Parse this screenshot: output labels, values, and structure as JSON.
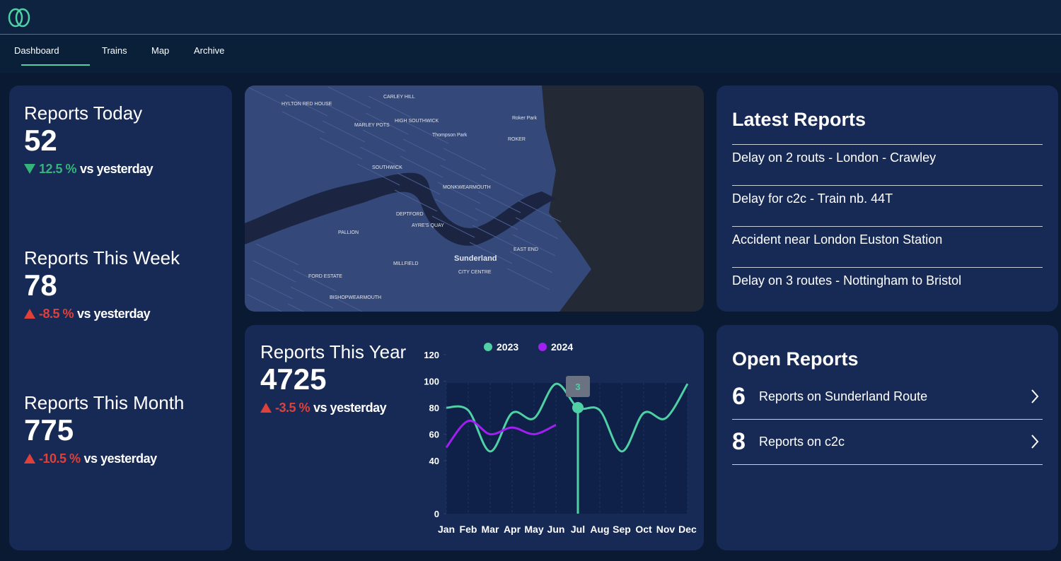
{
  "nav": [
    "Dashboard",
    "Trains",
    "Map",
    "Archive"
  ],
  "stats": [
    {
      "title": "Reports Today",
      "value": 52,
      "change": "12.5 %",
      "direction": "down",
      "comparison": "vs yesterday"
    },
    {
      "title": "Reports This Week",
      "value": 78,
      "change": "-8.5 %",
      "direction": "up",
      "comparison": "vs yesterday"
    },
    {
      "title": "Reports This Month",
      "value": 775,
      "change": "-10.5 %",
      "direction": "up",
      "comparison": "vs yesterday"
    }
  ],
  "year": {
    "title": "Reports This Year",
    "value": 4725,
    "change": "-3.5 %",
    "direction": "up",
    "comparison": "vs yesterday"
  },
  "chart_data": {
    "type": "line",
    "categories": [
      "Jan",
      "Feb",
      "Mar",
      "Apr",
      "May",
      "Jun",
      "Jul",
      "Aug",
      "Sep",
      "Oct",
      "Nov",
      "Dec"
    ],
    "series": [
      {
        "name": "2023",
        "color": "#4fd1a5",
        "values": [
          80,
          78,
          47,
          76,
          72,
          98,
          80,
          78,
          47,
          76,
          72,
          98
        ]
      },
      {
        "name": "2024",
        "color": "#a020f0",
        "values": [
          50,
          70,
          60,
          65,
          60,
          67,
          null,
          null,
          null,
          null,
          null,
          null
        ]
      }
    ],
    "ylim": [
      0,
      120
    ],
    "yticks": [
      0,
      40,
      60,
      80,
      100,
      120
    ],
    "tooltip": {
      "category": "Jul",
      "text": "3"
    }
  },
  "map": {
    "labels": [
      "HYLTON RED HOUSE",
      "CARLEY HILL",
      "MARLEY POTS",
      "HIGH SOUTHWICK",
      "Thompson Park",
      "Roker Park",
      "ROKER",
      "SOUTHWICK",
      "MONKWEARMOUTH",
      "DEPTFORD",
      "AYRE'S QUAY",
      "PALLION",
      "Sunderland",
      "CITY CENTRE",
      "EAST END",
      "MILLFIELD",
      "FORD ESTATE",
      "BISHOPWEARMOUTH"
    ]
  },
  "latest_reports": {
    "title": "Latest Reports",
    "items": [
      "Delay on 2 routs - London - Crawley",
      "Delay for c2c - Train nb. 44T",
      "Accident near London Euston Station",
      "Delay on 3 routes - Nottingham to Bristol"
    ]
  },
  "open_reports": {
    "title": "Open Reports",
    "items": [
      {
        "count": 6,
        "label": "Reports on Sunderland Route"
      },
      {
        "count": 8,
        "label": "Reports on c2c"
      }
    ]
  }
}
